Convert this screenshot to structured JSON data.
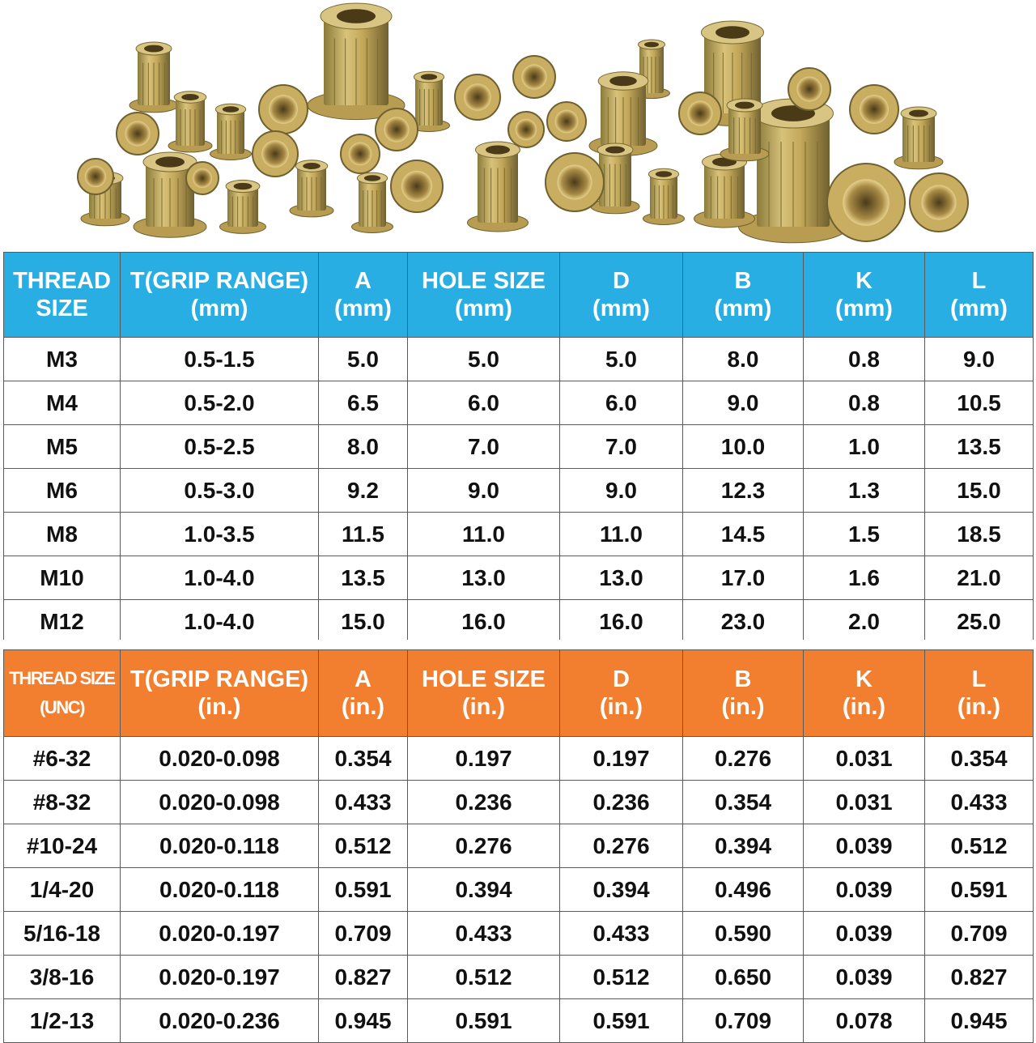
{
  "colors": {
    "metric_header": "#29aee3",
    "imperial_header": "#f27f30",
    "header_text": "#ffffff",
    "grid_lines": "#5a5a5a"
  },
  "photo": {
    "subject": "zinc-plated rivet nuts assortment",
    "icon": "rivet-nut-photo"
  },
  "metric_table": {
    "headers": [
      {
        "line1": "THREAD",
        "line2": "SIZE"
      },
      {
        "line1": "T(GRIP RANGE)",
        "line2": "(mm)"
      },
      {
        "line1": "A",
        "line2": "(mm)"
      },
      {
        "line1": "HOLE SIZE",
        "line2": "(mm)"
      },
      {
        "line1": "D",
        "line2": "(mm)"
      },
      {
        "line1": "B",
        "line2": "(mm)"
      },
      {
        "line1": "K",
        "line2": "(mm)"
      },
      {
        "line1": "L",
        "line2": "(mm)"
      }
    ],
    "rows": [
      [
        "M3",
        "0.5-1.5",
        "5.0",
        "5.0",
        "5.0",
        "8.0",
        "0.8",
        "9.0"
      ],
      [
        "M4",
        "0.5-2.0",
        "6.5",
        "6.0",
        "6.0",
        "9.0",
        "0.8",
        "10.5"
      ],
      [
        "M5",
        "0.5-2.5",
        "8.0",
        "7.0",
        "7.0",
        "10.0",
        "1.0",
        "13.5"
      ],
      [
        "M6",
        "0.5-3.0",
        "9.2",
        "9.0",
        "9.0",
        "12.3",
        "1.3",
        "15.0"
      ],
      [
        "M8",
        "1.0-3.5",
        "11.5",
        "11.0",
        "11.0",
        "14.5",
        "1.5",
        "18.5"
      ],
      [
        "M10",
        "1.0-4.0",
        "13.5",
        "13.0",
        "13.0",
        "17.0",
        "1.6",
        "21.0"
      ],
      [
        "M12",
        "1.0-4.0",
        "15.0",
        "16.0",
        "16.0",
        "23.0",
        "2.0",
        "25.0"
      ]
    ]
  },
  "imperial_table": {
    "headers": [
      {
        "line1": "THREAD SIZE",
        "line2": "(UNC)"
      },
      {
        "line1": "T(GRIP RANGE)",
        "line2": "(in.)"
      },
      {
        "line1": "A",
        "line2": "(in.)"
      },
      {
        "line1": "HOLE SIZE",
        "line2": "(in.)"
      },
      {
        "line1": "D",
        "line2": "(in.)"
      },
      {
        "line1": "B",
        "line2": "(in.)"
      },
      {
        "line1": "K",
        "line2": "(in.)"
      },
      {
        "line1": "L",
        "line2": "(in.)"
      }
    ],
    "rows": [
      [
        "#6-32",
        "0.020-0.098",
        "0.354",
        "0.197",
        "0.197",
        "0.276",
        "0.031",
        "0.354"
      ],
      [
        "#8-32",
        "0.020-0.098",
        "0.433",
        "0.236",
        "0.236",
        "0.354",
        "0.031",
        "0.433"
      ],
      [
        "#10-24",
        "0.020-0.118",
        "0.512",
        "0.276",
        "0.276",
        "0.394",
        "0.039",
        "0.512"
      ],
      [
        "1/4-20",
        "0.020-0.118",
        "0.591",
        "0.394",
        "0.394",
        "0.496",
        "0.039",
        "0.591"
      ],
      [
        "5/16-18",
        "0.020-0.197",
        "0.709",
        "0.433",
        "0.433",
        "0.590",
        "0.039",
        "0.709"
      ],
      [
        "3/8-16",
        "0.020-0.197",
        "0.827",
        "0.512",
        "0.512",
        "0.650",
        "0.039",
        "0.827"
      ],
      [
        "1/2-13",
        "0.020-0.236",
        "0.945",
        "0.591",
        "0.591",
        "0.709",
        "0.078",
        "0.945"
      ]
    ]
  }
}
